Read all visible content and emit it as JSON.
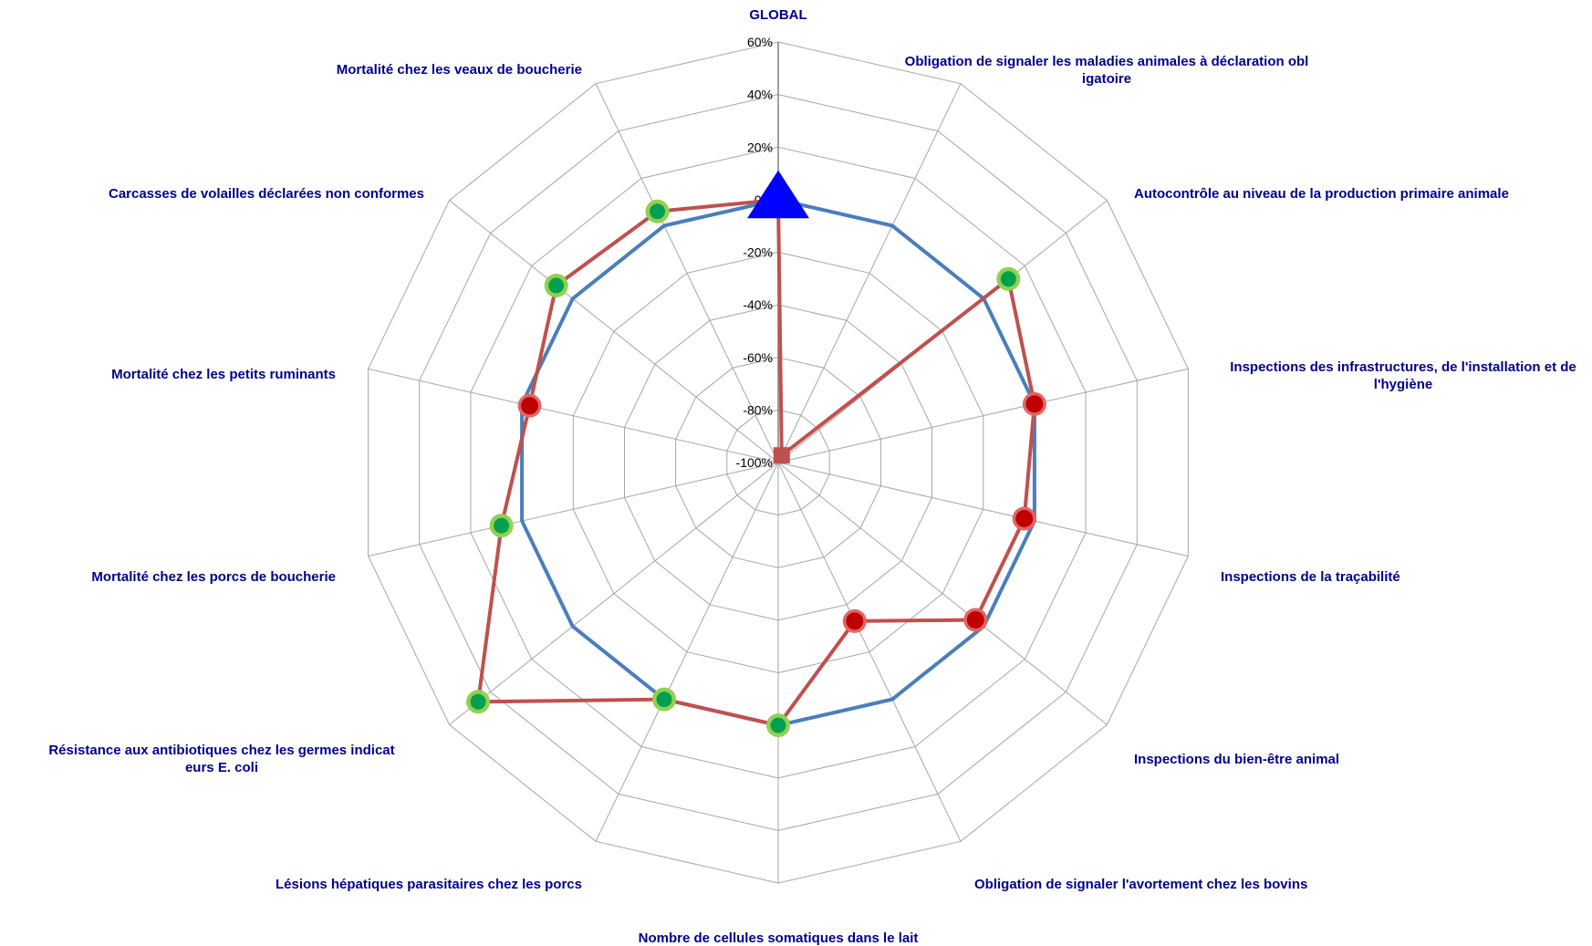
{
  "chart_data": {
    "type": "radar",
    "rlim": [
      -100,
      60
    ],
    "r_ticks": [
      "60%",
      "40%",
      "20%",
      "0%",
      "-20%",
      "-40%",
      "-60%",
      "-80%",
      "-100%"
    ],
    "r_tick_values": [
      60,
      40,
      20,
      0,
      -20,
      -40,
      -60,
      -80,
      -100
    ],
    "grid": true,
    "legend": "none",
    "categories": [
      "GLOBAL",
      "Obligation de signaler les maladies animales à déclaration obligatoire",
      "Autocontrôle au niveau de la production primaire animale",
      "Inspections des infrastructures, de l'installation et de l'hygiène",
      "Inspections de la traçabilité",
      "Inspections du bien-être animal",
      "Obligation de signaler l'avortement chez les bovins",
      "Nombre de cellules somatiques dans le lait",
      "Lésions hépatiques parasitaires chez les porcs",
      "Résistance aux antibiotiques chez les germes indicateurs E. coli",
      "Mortalité chez les porcs de boucherie",
      "Mortalité chez les petits ruminants",
      "Carcasses de volailles déclarées non conformes",
      "Mortalité chez les veaux de boucherie"
    ],
    "series": [
      {
        "color": "#4a7ebb",
        "values": [
          0,
          0,
          0,
          0,
          0,
          0,
          0,
          0,
          0,
          0,
          0,
          0,
          0,
          0
        ]
      },
      {
        "color": "#c0504d",
        "values": [
          0,
          -97,
          12,
          0,
          -4,
          -4,
          -33,
          0,
          0,
          46,
          8,
          -3,
          8,
          6
        ]
      }
    ],
    "markers": [
      "triangle",
      "square",
      "good",
      "bad",
      "bad",
      "bad",
      "bad",
      "good",
      "good",
      "good",
      "good",
      "bad",
      "good",
      "good"
    ],
    "marker_colors": {
      "triangle": "#0000ff",
      "square": "#c0504d",
      "good_fill": "#00a050",
      "good_ring": "#92d050",
      "bad_fill": "#c00000",
      "bad_ring": "#e06666"
    },
    "grid_color": "#a6a6a6"
  }
}
